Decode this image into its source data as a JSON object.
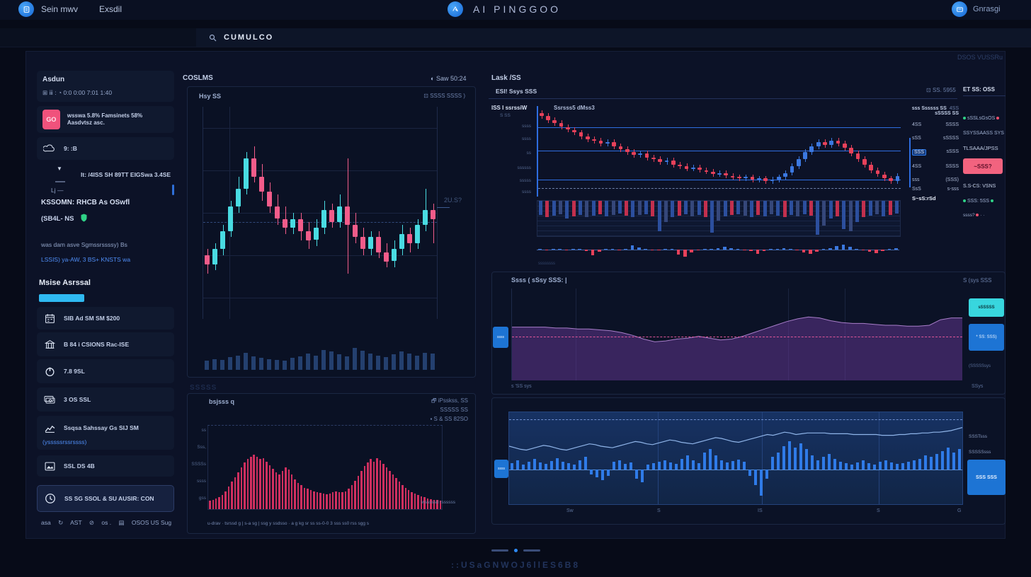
{
  "header": {
    "nav": [
      {
        "label": "Sein mwv"
      },
      {
        "label": "Exsdil"
      }
    ],
    "app_title": "AI PINGGOO",
    "profile_label": "Gnrasgi",
    "search": {
      "value": "CUMULCO"
    }
  },
  "main": {
    "top_right_note": "DSOS VUSSRu"
  },
  "sidebar": {
    "section_title": "Asdun",
    "status_prefix": "⊞ ⅲ :",
    "status_text": "0:0  0:00 7:01 1:40",
    "go_badge": "GO",
    "go_text": "wsswa 5.8% Famsinets 58% Aasdvtsz asc.",
    "cloud_text": "9: :B",
    "expander_text": "It: /4ISS SH 89TT EIGSwa  3.4SE",
    "expander_sub": "Lj —",
    "headline": "KSSOMN: RHCB As OSwfl",
    "badge_line": "(SB4L-  NS",
    "paragraph": "was dam asve Sgmssrssssy) Bs",
    "link": "LSSIS)  ya-AW,  3 BS+  KNSTS wa",
    "alerts_title": "Msise Asrssal",
    "items": [
      {
        "label": "SIB Ad SM SM $200"
      },
      {
        "label": "B 84 i CSIONS Rac-ISE"
      },
      {
        "label": "7.8 9SL"
      },
      {
        "label": "3 OS SSL"
      },
      {
        "label": "Ssqsa Sahssay Gs SIJ SM",
        "sub": "(ysssssrssrssss)"
      },
      {
        "label": "SSL DS 4B"
      },
      {
        "label": "SS SG SSOL & SU AUSIR: CON"
      }
    ],
    "footer_tokens": [
      "asa",
      "AST",
      "os .",
      "OSOS US Sug"
    ]
  },
  "center": {
    "title": "COSLMS",
    "toolbar_right": "Saw 50:24",
    "card1": {
      "header_left": "Hsy SS",
      "header_right": "SSSS SSSS )",
      "price_label": "2U.S?"
    },
    "card2": {
      "ghost": "SSSSS",
      "header_left": "bsjsss q",
      "right_line1": "iPsskss, SS",
      "right_line2": "SSSSS SS",
      "right_small": "S & SS 82SO",
      "note_right": "wsssssd rssssss",
      "x_axis": "u-drav · tsrssd g | s-a sg | ssg y ssdsso · a g kg sr ss  ss-0-0 3 sss ss0 rss sgg s",
      "y_labels": [
        "ss",
        "Sss,",
        "SSSSs",
        "ssss",
        "gss"
      ]
    }
  },
  "right": {
    "title": "Lask /SS",
    "badge_small": "SS. 5955",
    "subheader": "ESI! Ssys  SSS",
    "col_left": "ISS I ssrssiW",
    "col_right": "Ssrsss5 dMss3",
    "col_sub": "S SS",
    "y_labels": [
      "ssss",
      "ssss",
      "ss",
      "ssssss",
      "sssss",
      "ssss"
    ],
    "axis_foot": "ssssssss",
    "price_scale": {
      "h1": "sss Ssssss SS",
      "h2": "sSSSS SS",
      "chip": "4SS",
      "rows": [
        [
          "4SS",
          "SSSS"
        ],
        [
          "sSS",
          "sSSSS"
        ],
        [
          "SSS",
          "sSSS"
        ],
        [
          "4SS",
          "SSSS"
        ],
        [
          "sss",
          "(SSS)"
        ],
        [
          "SsS",
          "s-sss"
        ]
      ],
      "footer": "S~sS:rSd"
    },
    "order": {
      "header": "ET SS: OSS",
      "row1": "sSSLsGsOS",
      "row2": "SSYSSAASS SYS",
      "row3": "TLSAAA/JPSS",
      "button": "~SSS?",
      "row4": "S.S-CS: VSNS",
      "row5": "SSS: 5SS",
      "row6": "ssss?"
    },
    "area": {
      "header_left": "Ssss ( sSsy SSS: |",
      "header_right": "S (sys SSS",
      "left_chip": "ssss",
      "chip_cyan": "sSSSSS",
      "chip_blue": "* SS: SSS)",
      "chip_sub": "(SSSSSsys",
      "bottom_left": "s 'SS sys",
      "bottom_right": "SSys"
    },
    "blue": {
      "left_chip": "ssss",
      "x_labels": [
        "Sw",
        "S",
        "IS",
        "S",
        "G"
      ],
      "right_text1": "SSSTsss",
      "right_text2": "SSSSSsss",
      "button": "SSS SSS"
    }
  },
  "footer": {
    "text": "::USaGNWOJ6llES6B8"
  },
  "colors": {
    "accent_blue": "#2f7be8",
    "candle_up_cyan": "#49dbe2",
    "candle_down_pink": "#f25c8a",
    "candle_up_blue": "#3b78e0",
    "candle_down_red": "#e8415a",
    "hist_red": "#cf2f5f",
    "sell_pink": "#f2637f",
    "progress_cyan": "#2fb9f1"
  },
  "chart_data": [
    {
      "id": "main-candles",
      "type": "candlestick",
      "vmin": 15,
      "vmax": 85,
      "up": "#49dbe2",
      "down": "#f25c8a",
      "price_line": 47,
      "candles": [
        [
          36,
          33,
          30,
          38
        ],
        [
          33,
          38,
          31,
          40
        ],
        [
          38,
          44,
          36,
          46
        ],
        [
          44,
          52,
          42,
          54
        ],
        [
          52,
          58,
          50,
          62
        ],
        [
          58,
          68,
          56,
          70
        ],
        [
          68,
          62,
          60,
          72
        ],
        [
          62,
          57,
          54,
          66
        ],
        [
          57,
          52,
          50,
          60
        ],
        [
          52,
          48,
          46,
          56
        ],
        [
          48,
          45,
          43,
          52
        ],
        [
          45,
          48,
          43,
          50
        ],
        [
          48,
          44,
          41,
          50
        ],
        [
          44,
          41,
          38,
          47
        ],
        [
          41,
          45,
          39,
          48
        ],
        [
          45,
          51,
          43,
          54
        ],
        [
          51,
          47,
          45,
          53
        ],
        [
          47,
          52,
          45,
          56
        ],
        [
          52,
          46,
          30,
          68
        ],
        [
          46,
          42,
          40,
          50
        ],
        [
          42,
          38,
          36,
          45
        ],
        [
          38,
          42,
          36,
          44
        ],
        [
          42,
          37,
          35,
          44
        ],
        [
          37,
          34,
          32,
          40
        ],
        [
          34,
          38,
          32,
          41
        ],
        [
          38,
          43,
          36,
          46
        ],
        [
          43,
          40,
          37,
          45
        ],
        [
          40,
          46,
          38,
          48
        ],
        [
          46,
          51,
          44,
          58
        ],
        [
          51,
          48,
          40,
          53
        ]
      ]
    },
    {
      "id": "main-volume",
      "type": "bar",
      "max": 100,
      "color": "#24406f",
      "values": [
        20,
        24,
        22,
        28,
        32,
        38,
        30,
        26,
        24,
        22,
        20,
        26,
        30,
        36,
        32,
        44,
        40,
        34,
        30,
        48,
        42,
        36,
        32,
        28,
        34,
        40,
        36,
        32,
        38,
        36
      ]
    },
    {
      "id": "momentum-hist",
      "type": "bar",
      "max": 140,
      "color": "#cf2f5f",
      "values": [
        14,
        16,
        18,
        20,
        24,
        30,
        38,
        46,
        54,
        62,
        70,
        78,
        84,
        88,
        92,
        88,
        84,
        86,
        80,
        74,
        68,
        62,
        58,
        64,
        70,
        66,
        58,
        50,
        44,
        40,
        36,
        34,
        32,
        30,
        28,
        27,
        26,
        25,
        26,
        28,
        30,
        29,
        28,
        30,
        34,
        40,
        48,
        56,
        64,
        72,
        78,
        84,
        80,
        86,
        82,
        76,
        70,
        64,
        58,
        52,
        46,
        40,
        36,
        32,
        28,
        26,
        24,
        22,
        20,
        18,
        17,
        16,
        15,
        14
      ]
    },
    {
      "id": "right-candles",
      "type": "candlestick",
      "vmin": 30,
      "vmax": 95,
      "up": "#3b78e0",
      "down": "#e8415a",
      "hlines": [
        80,
        63,
        42
      ],
      "dashed": 36,
      "hline_color": "#2e6de0",
      "dash_color": "#6f81a8",
      "candles": [
        [
          90,
          88,
          86,
          92
        ],
        [
          88,
          85,
          83,
          90
        ],
        [
          85,
          83,
          81,
          87
        ],
        [
          83,
          80,
          78,
          85
        ],
        [
          80,
          78,
          76,
          82
        ],
        [
          78,
          76,
          74,
          80
        ],
        [
          76,
          73,
          71,
          78
        ],
        [
          73,
          71,
          69,
          75
        ],
        [
          71,
          70,
          68,
          73
        ],
        [
          70,
          68,
          66,
          72
        ],
        [
          68,
          69,
          66,
          71
        ],
        [
          69,
          66,
          64,
          71
        ],
        [
          66,
          64,
          62,
          68
        ],
        [
          64,
          62,
          60,
          66
        ],
        [
          62,
          60,
          58,
          64
        ],
        [
          60,
          61,
          58,
          63
        ],
        [
          61,
          58,
          56,
          63
        ],
        [
          58,
          57,
          55,
          60
        ],
        [
          57,
          55,
          53,
          59
        ],
        [
          55,
          56,
          53,
          58
        ],
        [
          56,
          53,
          51,
          58
        ],
        [
          53,
          52,
          50,
          55
        ],
        [
          52,
          50,
          48,
          54
        ],
        [
          50,
          51,
          48,
          53
        ],
        [
          51,
          49,
          47,
          53
        ],
        [
          49,
          48,
          46,
          51
        ],
        [
          48,
          46,
          44,
          50
        ],
        [
          46,
          47,
          44,
          49
        ],
        [
          47,
          45,
          43,
          49
        ],
        [
          45,
          44,
          42,
          47
        ],
        [
          44,
          43,
          41,
          46
        ],
        [
          43,
          44,
          41,
          46
        ],
        [
          44,
          42,
          40,
          46
        ],
        [
          42,
          43,
          40,
          45
        ],
        [
          43,
          41,
          39,
          45
        ],
        [
          41,
          42,
          39,
          44
        ],
        [
          42,
          44,
          40,
          46
        ],
        [
          44,
          47,
          42,
          49
        ],
        [
          47,
          52,
          45,
          54
        ],
        [
          52,
          57,
          50,
          59
        ],
        [
          57,
          62,
          55,
          64
        ],
        [
          62,
          66,
          60,
          68
        ],
        [
          66,
          69,
          64,
          71
        ],
        [
          69,
          67,
          65,
          71
        ],
        [
          67,
          70,
          65,
          72
        ],
        [
          70,
          68,
          66,
          72
        ],
        [
          68,
          65,
          63,
          70
        ],
        [
          65,
          61,
          59,
          67
        ],
        [
          61,
          57,
          55,
          63
        ],
        [
          57,
          53,
          51,
          59
        ],
        [
          53,
          49,
          47,
          55
        ],
        [
          49,
          46,
          44,
          51
        ],
        [
          46,
          43,
          41,
          48
        ],
        [
          43,
          41,
          39,
          45
        ],
        [
          41,
          45,
          39,
          47
        ]
      ]
    },
    {
      "id": "right-stripe",
      "type": "bar",
      "max": 100,
      "align": "top",
      "color": [
        "#2c4f9e",
        "#c2304e",
        "#2c4f9e",
        "#35477a"
      ],
      "values": [
        40,
        45,
        42,
        38,
        50,
        44,
        40,
        46,
        42,
        38,
        44,
        40,
        36,
        42,
        46,
        40,
        38,
        44,
        85,
        60,
        46,
        42,
        38,
        44,
        40,
        46,
        90,
        55,
        44,
        40,
        38,
        42,
        46,
        40,
        44,
        38,
        42,
        46,
        40,
        44,
        38,
        42,
        95,
        70,
        50,
        44,
        80,
        85,
        60,
        46,
        42,
        38,
        44,
        40,
        36
      ]
    },
    {
      "id": "right-osc",
      "type": "signed",
      "scale": 0.14,
      "pos": "#3b78e0",
      "neg": "#e8415a",
      "baseline": 15,
      "values": [
        5,
        -8,
        6,
        4,
        -6,
        8,
        10,
        -12,
        -60,
        -20,
        8,
        6,
        -4,
        10,
        40,
        22,
        8,
        -6,
        -10,
        8,
        6,
        -50,
        -70,
        -30,
        -10,
        6,
        8,
        12,
        30,
        18,
        8,
        -8,
        -14,
        -40,
        -16,
        6,
        10,
        14,
        8,
        -6,
        -30,
        -44,
        -18,
        6,
        12,
        36,
        50,
        28,
        10,
        -8,
        -20,
        -34,
        -12,
        8,
        14
      ]
    },
    {
      "id": "area-purple",
      "type": "area",
      "fill": "rgba(104,56,150,0.50)",
      "stroke": "#a87ec9",
      "refline": 48,
      "ref_color": "#e0569a",
      "values": [
        58,
        58,
        58,
        58,
        57,
        57,
        56,
        56,
        55,
        54,
        52,
        49,
        45,
        42,
        43,
        45,
        46,
        48,
        46,
        44,
        45,
        48,
        52,
        56,
        60,
        64,
        67,
        69,
        68,
        65,
        63,
        62,
        62,
        61,
        60,
        60,
        59,
        59,
        60,
        66,
        68,
        68
      ]
    },
    {
      "id": "blue-bars",
      "type": "signed",
      "scale": 1.1,
      "pos": "#2f7be8",
      "neg": "#2f7be8",
      "baseline": 81,
      "base_color": "#5a8bd0",
      "line_color": "#8fb4e8",
      "values": [
        8,
        12,
        6,
        10,
        14,
        9,
        7,
        11,
        15,
        10,
        8,
        6,
        12,
        16,
        -6,
        -10,
        -14,
        -8,
        10,
        12,
        7,
        9,
        -12,
        -16,
        6,
        8,
        10,
        12,
        9,
        7,
        14,
        18,
        12,
        8,
        22,
        26,
        18,
        12,
        9,
        11,
        13,
        10,
        -8,
        -20,
        -34,
        -12,
        16,
        22,
        30,
        36,
        28,
        34,
        26,
        18,
        12,
        16,
        20,
        14,
        10,
        8,
        6,
        9,
        12,
        8,
        6,
        10,
        12,
        9,
        7,
        8,
        10,
        12,
        14,
        18,
        16,
        20,
        24,
        28,
        22,
        26
      ],
      "line": [
        30,
        28,
        26,
        25,
        27,
        29,
        31,
        30,
        28,
        26,
        25,
        27,
        29,
        31,
        33,
        32,
        30,
        29,
        28,
        30,
        32,
        34,
        36,
        35,
        33,
        32,
        34,
        36,
        38,
        37,
        35,
        34,
        33,
        35,
        37,
        39,
        41,
        40,
        38,
        36,
        35,
        37,
        39,
        41,
        43,
        45,
        44,
        46,
        48,
        47,
        45,
        46,
        47,
        47,
        47,
        47,
        46,
        46,
        46,
        46,
        45,
        45,
        45,
        45,
        45,
        44,
        44,
        44,
        45,
        45,
        46,
        46,
        47,
        47,
        48,
        48,
        49,
        50,
        52,
        54
      ]
    }
  ]
}
